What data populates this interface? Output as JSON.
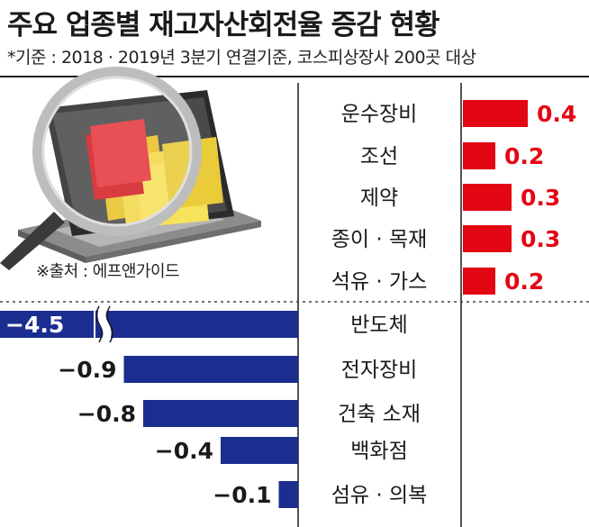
{
  "title": "주요 업종별 재고자산회전율 증감 현황",
  "subtitle": "*기준 : 2018 · 2019년 3분기 연결기준, 코스피상장사 200곳 대상",
  "source": "※출처 : 에프앤가이드",
  "colors": {
    "positive": "#e30613",
    "negative": "#1b2d8f"
  },
  "illustration": "magnifying-glass-over-folders-on-laptop",
  "chart_data": {
    "type": "bar",
    "orientation": "horizontal-diverging",
    "title": "주요 업종별 재고자산회전율 증감 현황",
    "subtitle": "*기준 : 2018 · 2019년 3분기 연결기준, 코스피상장사 200곳 대상",
    "categories": [
      "운수장비",
      "조선",
      "제약",
      "종이 · 목재",
      "석유 · 가스",
      "반도체",
      "전자장비",
      "건축 소재",
      "백화점",
      "섬유 · 의복"
    ],
    "values": [
      0.4,
      0.2,
      0.3,
      0.3,
      0.2,
      -4.5,
      -0.9,
      -0.8,
      -0.4,
      -0.1
    ],
    "labels": [
      "0.4",
      "0.2",
      "0.3",
      "0.3",
      "0.2",
      "−4.5",
      "−0.9",
      "−0.8",
      "−0.4",
      "−0.1"
    ],
    "axis_break": {
      "category": "반도체",
      "note": "broken bar"
    },
    "grid": false,
    "legend": "none"
  }
}
